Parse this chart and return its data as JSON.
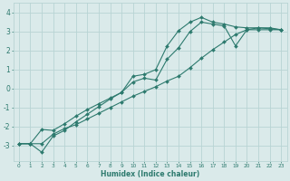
{
  "bg_color": "#daeaea",
  "grid_color": "#b8d4d4",
  "line_color": "#2d7a6e",
  "marker_color": "#2d7a6e",
  "xlabel": "Humidex (Indice chaleur)",
  "xlim": [
    -0.5,
    23.5
  ],
  "ylim": [
    -3.8,
    4.5
  ],
  "yticks": [
    -3,
    -2,
    -1,
    0,
    1,
    2,
    3,
    4
  ],
  "xticks": [
    0,
    1,
    2,
    3,
    4,
    5,
    6,
    7,
    8,
    9,
    10,
    11,
    12,
    13,
    14,
    15,
    16,
    17,
    18,
    19,
    20,
    21,
    22,
    23
  ],
  "line1_x": [
    0,
    1,
    2,
    3,
    4,
    5,
    6,
    7,
    8,
    9,
    10,
    11,
    12,
    13,
    14,
    15,
    16,
    17,
    18,
    19,
    20,
    21,
    22,
    23
  ],
  "line1_y": [
    -2.9,
    -2.9,
    -3.35,
    -2.5,
    -2.2,
    -1.75,
    -1.35,
    -0.95,
    -0.55,
    -0.2,
    0.65,
    0.75,
    1.0,
    2.25,
    3.05,
    3.5,
    3.75,
    3.5,
    3.4,
    3.25,
    3.2,
    3.2,
    3.15,
    3.1
  ],
  "line2_x": [
    0,
    1,
    2,
    3,
    4,
    5,
    6,
    7,
    8,
    9,
    10,
    11,
    12,
    13,
    14,
    15,
    16,
    17,
    18,
    19,
    20,
    21,
    22,
    23
  ],
  "line2_y": [
    -2.9,
    -2.9,
    -2.15,
    -2.2,
    -1.85,
    -1.45,
    -1.1,
    -0.8,
    -0.5,
    -0.2,
    0.35,
    0.55,
    0.45,
    1.55,
    2.15,
    3.0,
    3.5,
    3.4,
    3.3,
    2.25,
    3.1,
    3.1,
    3.1,
    3.1
  ],
  "line3_x": [
    0,
    1,
    2,
    3,
    4,
    5,
    6,
    7,
    8,
    9,
    10,
    11,
    12,
    13,
    14,
    15,
    16,
    17,
    18,
    19,
    20,
    21,
    22,
    23
  ],
  "line3_y": [
    -2.9,
    -2.9,
    -2.9,
    -2.4,
    -2.1,
    -1.9,
    -1.6,
    -1.3,
    -1.0,
    -0.7,
    -0.4,
    -0.15,
    0.1,
    0.4,
    0.65,
    1.1,
    1.6,
    2.05,
    2.45,
    2.85,
    3.1,
    3.2,
    3.2,
    3.1
  ],
  "xlabel_fontsize": 5.5,
  "ytick_fontsize": 5.5,
  "xtick_fontsize": 4.2
}
